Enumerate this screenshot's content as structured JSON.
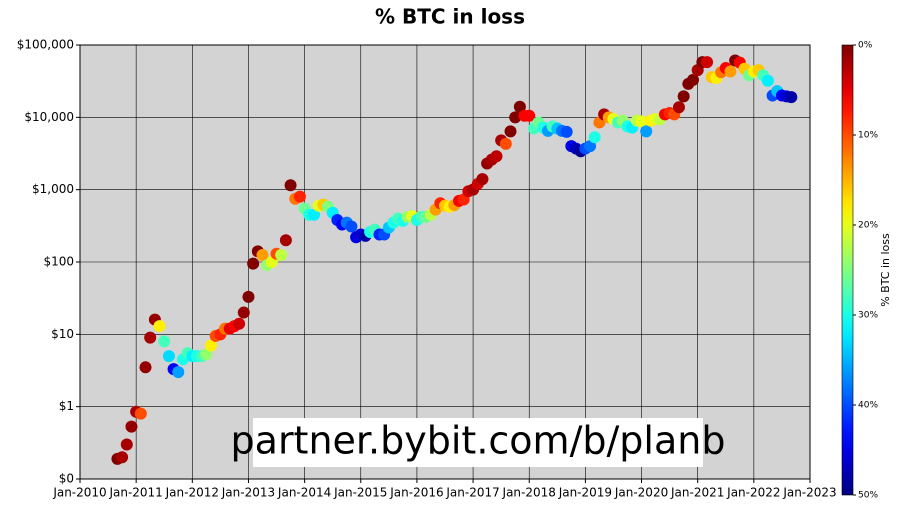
{
  "chart_data": {
    "type": "scatter",
    "title": "% BTC in loss",
    "annotation": "partner.bybit.com/b/planb",
    "log_y": true,
    "grid": true,
    "colormap": "jet_r",
    "colorbar_label": "% BTC in loss",
    "clim": [
      0,
      50
    ],
    "colorbar_ticks": [
      {
        "value": 0,
        "label": "0%"
      },
      {
        "value": 10,
        "label": "10%"
      },
      {
        "value": 20,
        "label": "20%"
      },
      {
        "value": 30,
        "label": "30%"
      },
      {
        "value": 40,
        "label": "40%"
      },
      {
        "value": 50,
        "label": "50%"
      }
    ],
    "xlim": [
      "2010-01",
      "2023-01"
    ],
    "xticks": [
      {
        "value": "2010-01",
        "label": "Jan-2010"
      },
      {
        "value": "2011-01",
        "label": "Jan-2011"
      },
      {
        "value": "2012-01",
        "label": "Jan-2012"
      },
      {
        "value": "2013-01",
        "label": "Jan-2013"
      },
      {
        "value": "2014-01",
        "label": "Jan-2014"
      },
      {
        "value": "2015-01",
        "label": "Jan-2015"
      },
      {
        "value": "2016-01",
        "label": "Jan-2016"
      },
      {
        "value": "2017-01",
        "label": "Jan-2017"
      },
      {
        "value": "2018-01",
        "label": "Jan-2018"
      },
      {
        "value": "2019-01",
        "label": "Jan-2019"
      },
      {
        "value": "2020-01",
        "label": "Jan-2020"
      },
      {
        "value": "2021-01",
        "label": "Jan-2021"
      },
      {
        "value": "2022-01",
        "label": "Jan-2022"
      },
      {
        "value": "2023-01",
        "label": "Jan-2023"
      }
    ],
    "ylim": [
      0.1,
      100000
    ],
    "yticks": [
      {
        "value": 0.1,
        "label": "$0"
      },
      {
        "value": 1,
        "label": "$1"
      },
      {
        "value": 10,
        "label": "$10"
      },
      {
        "value": 100,
        "label": "$100"
      },
      {
        "value": 1000,
        "label": "$1,000"
      },
      {
        "value": 10000,
        "label": "$10,000"
      },
      {
        "value": 100000,
        "label": "$100,000"
      }
    ],
    "x": [
      "2010-09",
      "2010-10",
      "2010-11",
      "2010-12",
      "2011-01",
      "2011-02",
      "2011-03",
      "2011-04",
      "2011-05",
      "2011-06",
      "2011-07",
      "2011-08",
      "2011-09",
      "2011-10",
      "2011-11",
      "2011-12",
      "2012-01",
      "2012-02",
      "2012-03",
      "2012-04",
      "2012-05",
      "2012-06",
      "2012-07",
      "2012-08",
      "2012-09",
      "2012-10",
      "2012-11",
      "2012-12",
      "2013-01",
      "2013-02",
      "2013-03",
      "2013-04",
      "2013-05",
      "2013-06",
      "2013-07",
      "2013-08",
      "2013-09",
      "2013-10",
      "2013-11",
      "2013-12",
      "2014-01",
      "2014-02",
      "2014-03",
      "2014-04",
      "2014-05",
      "2014-06",
      "2014-07",
      "2014-08",
      "2014-09",
      "2014-10",
      "2014-11",
      "2014-12",
      "2015-01",
      "2015-02",
      "2015-03",
      "2015-04",
      "2015-05",
      "2015-06",
      "2015-07",
      "2015-08",
      "2015-09",
      "2015-10",
      "2015-11",
      "2015-12",
      "2016-01",
      "2016-02",
      "2016-03",
      "2016-04",
      "2016-05",
      "2016-06",
      "2016-07",
      "2016-08",
      "2016-09",
      "2016-10",
      "2016-11",
      "2016-12",
      "2017-01",
      "2017-02",
      "2017-03",
      "2017-04",
      "2017-05",
      "2017-06",
      "2017-07",
      "2017-08",
      "2017-09",
      "2017-10",
      "2017-11",
      "2017-12",
      "2018-01",
      "2018-02",
      "2018-03",
      "2018-04",
      "2018-05",
      "2018-06",
      "2018-07",
      "2018-08",
      "2018-09",
      "2018-10",
      "2018-11",
      "2018-12",
      "2019-01",
      "2019-02",
      "2019-03",
      "2019-04",
      "2019-05",
      "2019-06",
      "2019-07",
      "2019-08",
      "2019-09",
      "2019-10",
      "2019-11",
      "2019-12",
      "2020-01",
      "2020-02",
      "2020-03",
      "2020-04",
      "2020-05",
      "2020-06",
      "2020-07",
      "2020-08",
      "2020-09",
      "2020-10",
      "2020-11",
      "2020-12",
      "2021-01",
      "2021-02",
      "2021-03",
      "2021-04",
      "2021-05",
      "2021-06",
      "2021-07",
      "2021-08",
      "2021-09",
      "2021-10",
      "2021-11",
      "2021-12",
      "2022-01",
      "2022-02",
      "2022-03",
      "2022-04",
      "2022-05",
      "2022-06",
      "2022-07",
      "2022-08",
      "2022-09"
    ],
    "values": [
      0.19,
      0.2,
      0.3,
      0.53,
      0.85,
      0.8,
      3.5,
      9,
      16,
      13,
      8,
      5,
      3.3,
      3,
      4.5,
      5.5,
      5,
      5,
      5,
      5.3,
      7,
      9.5,
      10,
      12,
      12,
      13,
      14,
      20,
      33,
      95,
      140,
      125,
      90,
      100,
      130,
      125,
      200,
      1150,
      750,
      800,
      550,
      450,
      450,
      600,
      620,
      580,
      480,
      380,
      330,
      350,
      310,
      220,
      240,
      230,
      260,
      280,
      240,
      240,
      300,
      350,
      400,
      370,
      420,
      430,
      380,
      420,
      420,
      450,
      530,
      650,
      600,
      580,
      610,
      700,
      730,
      950,
      1000,
      1200,
      1400,
      2300,
      2600,
      2900,
      4800,
      4300,
      6400,
      10000,
      14000,
      10500,
      10500,
      7000,
      8500,
      7200,
      6500,
      7500,
      7000,
      6500,
      6300,
      4000,
      3700,
      3400,
      3700,
      4000,
      5300,
      8500,
      11000,
      10000,
      9500,
      8500,
      9000,
      7500,
      7200,
      9000,
      8800,
      6400,
      9000,
      9500,
      9400,
      11000,
      11500,
      11000,
      13800,
      19500,
      29000,
      33000,
      45000,
      58000,
      58000,
      36000,
      35000,
      42000,
      48000,
      43000,
      61000,
      57000,
      47000,
      38000,
      43000,
      45000,
      38000,
      32000,
      20000,
      23000,
      20000,
      19500,
      19000
    ],
    "color_values": [
      0,
      2,
      2,
      1,
      2,
      10,
      1,
      2,
      1,
      18,
      28,
      33,
      44,
      36,
      30,
      28,
      32,
      30,
      28,
      24,
      18,
      10,
      8,
      12,
      5,
      6,
      4,
      1,
      0,
      0,
      0,
      14,
      24,
      20,
      10,
      22,
      2,
      0,
      12,
      8,
      26,
      30,
      32,
      20,
      16,
      25,
      32,
      42,
      44,
      38,
      40,
      45,
      46,
      48,
      30,
      28,
      42,
      40,
      34,
      30,
      28,
      30,
      24,
      20,
      30,
      28,
      26,
      22,
      14,
      8,
      16,
      18,
      14,
      6,
      8,
      4,
      2,
      4,
      2,
      1,
      2,
      3,
      2,
      10,
      0,
      0,
      0,
      6,
      6,
      28,
      26,
      30,
      36,
      28,
      34,
      38,
      40,
      45,
      47,
      49,
      40,
      38,
      30,
      12,
      2,
      14,
      20,
      28,
      24,
      30,
      32,
      22,
      20,
      36,
      18,
      20,
      22,
      6,
      8,
      10,
      2,
      0,
      0,
      0,
      2,
      0,
      4,
      16,
      18,
      12,
      6,
      14,
      0,
      6,
      16,
      26,
      18,
      16,
      28,
      32,
      40,
      34,
      44,
      46,
      48
    ]
  }
}
